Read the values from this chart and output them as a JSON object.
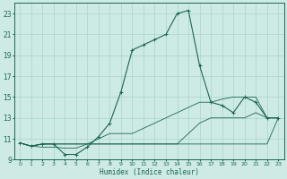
{
  "title": "",
  "xlabel": "Humidex (Indice chaleur)",
  "bg_color": "#ceeae4",
  "grid_color": "#a8d4cc",
  "line_color": "#1a6655",
  "xlim": [
    -0.5,
    23.5
  ],
  "ylim": [
    9,
    24
  ],
  "xticks": [
    0,
    1,
    2,
    3,
    4,
    5,
    6,
    7,
    8,
    9,
    10,
    11,
    12,
    13,
    14,
    15,
    16,
    17,
    18,
    19,
    20,
    21,
    22,
    23
  ],
  "yticks": [
    9,
    11,
    13,
    15,
    17,
    19,
    21,
    23
  ],
  "x_vals": [
    0,
    1,
    2,
    3,
    4,
    5,
    6,
    7,
    8,
    9,
    10,
    11,
    12,
    13,
    14,
    15,
    16,
    17,
    18,
    19,
    20,
    21,
    22,
    23
  ],
  "series": [
    [
      10.6,
      10.3,
      10.5,
      10.5,
      10.5,
      10.5,
      10.5,
      10.5,
      10.5,
      10.5,
      10.5,
      10.5,
      10.5,
      10.5,
      10.5,
      10.5,
      10.5,
      10.5,
      10.5,
      10.5,
      10.5,
      10.5,
      10.5,
      13.0
    ],
    [
      10.6,
      10.3,
      10.5,
      10.5,
      10.5,
      10.5,
      10.5,
      10.5,
      10.5,
      10.5,
      10.5,
      10.5,
      10.5,
      10.5,
      10.5,
      11.5,
      12.5,
      13.0,
      13.0,
      13.0,
      13.0,
      13.5,
      13.0,
      13.0
    ],
    [
      10.6,
      10.3,
      10.2,
      10.2,
      10.1,
      10.1,
      10.5,
      11.0,
      11.5,
      11.5,
      11.5,
      12.0,
      12.5,
      13.0,
      13.5,
      14.0,
      14.5,
      14.5,
      14.8,
      15.0,
      15.0,
      15.0,
      13.0,
      13.0
    ],
    [
      10.6,
      10.3,
      10.5,
      10.5,
      9.5,
      9.5,
      10.2,
      11.2,
      12.5,
      15.5,
      19.5,
      20.0,
      20.5,
      21.0,
      23.0,
      23.3,
      18.0,
      14.5,
      14.2,
      13.5,
      15.0,
      14.5,
      13.0,
      13.0
    ]
  ],
  "marker_series": 3,
  "lw_thin": 0.6,
  "lw_main": 0.8,
  "markersize": 2.8
}
